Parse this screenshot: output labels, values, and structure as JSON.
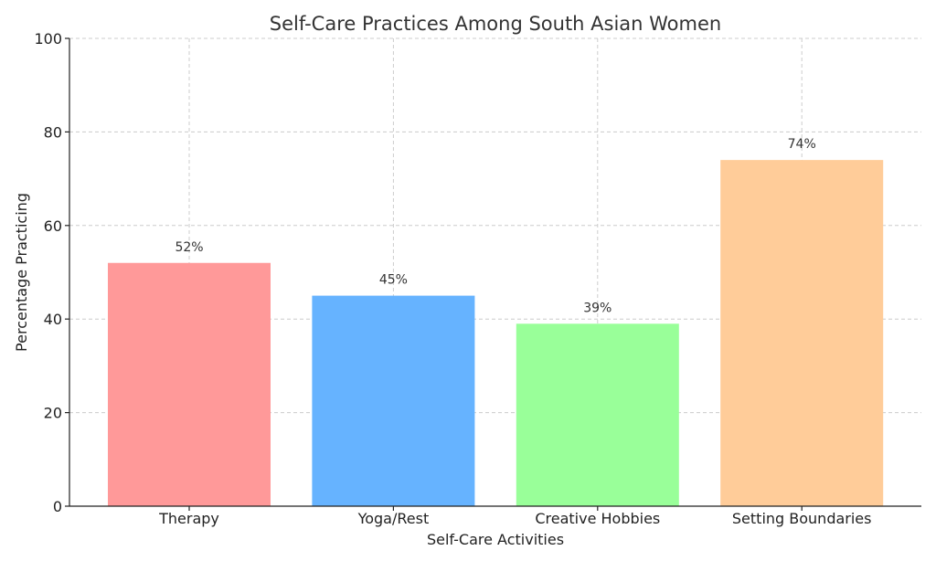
{
  "chart_data": {
    "type": "bar",
    "title": "Self-Care Practices Among South Asian Women",
    "xlabel": "Self-Care Activities",
    "ylabel": "Percentage Practicing",
    "categories": [
      "Therapy",
      "Yoga/Rest",
      "Creative Hobbies",
      "Setting Boundaries"
    ],
    "values": [
      52,
      45,
      39,
      74
    ],
    "data_labels": [
      "52%",
      "45%",
      "39%",
      "74%"
    ],
    "colors": [
      "#ff9999",
      "#66b3ff",
      "#99ff99",
      "#ffcc99"
    ],
    "ylim": [
      0,
      100
    ],
    "yticks": [
      0,
      20,
      40,
      60,
      80,
      100
    ],
    "ytick_labels": [
      "0",
      "20",
      "40",
      "60",
      "80",
      "100"
    ],
    "grid": true,
    "legend": false
  }
}
